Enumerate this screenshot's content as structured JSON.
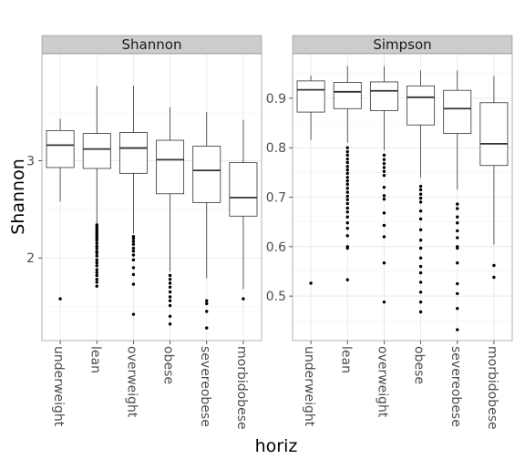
{
  "chart_data": {
    "type": "boxplot",
    "xlabel": "horiz",
    "ylabel": "Shannon",
    "categories": [
      "underweight",
      "lean",
      "overweight",
      "obese",
      "severeobese",
      "morbidobese"
    ],
    "facet_scales": "free_y",
    "grid": true,
    "colors": {
      "panel_background": "#ffffff",
      "panel_border": "#7f7f7f",
      "grid_major": "#e6e6e6",
      "grid_minor": "#f2f2f2",
      "strip_background": "#cccccc",
      "box_line": "#333333",
      "outlier": "#000000"
    },
    "panels": [
      {
        "strip": "Shannon",
        "ylim": [
          1.15,
          4.1
        ],
        "yticks": [
          2,
          3
        ],
        "ytick_labels": [
          "2",
          "3"
        ],
        "boxes": [
          {
            "category": "underweight",
            "min": 2.58,
            "q1": 2.93,
            "median": 3.16,
            "q3": 3.31,
            "max": 3.43,
            "outliers": [
              1.58
            ]
          },
          {
            "category": "lean",
            "min": 2.25,
            "q1": 2.92,
            "median": 3.12,
            "q3": 3.28,
            "max": 3.77,
            "outliers": [
              2.34,
              2.32,
              2.3,
              2.28,
              2.26,
              2.24,
              2.22,
              2.2,
              2.18,
              2.15,
              2.12,
              2.1,
              2.07,
              2.05,
              2.02,
              1.98,
              1.95,
              1.92,
              1.88,
              1.85,
              1.82,
              1.78,
              1.75,
              1.71
            ]
          },
          {
            "category": "overweight",
            "min": 2.25,
            "q1": 2.87,
            "median": 3.13,
            "q3": 3.29,
            "max": 3.77,
            "outliers": [
              2.22,
              2.2,
              2.17,
              2.14,
              2.1,
              2.07,
              2.03,
              1.98,
              1.9,
              1.83,
              1.73,
              1.42
            ]
          },
          {
            "category": "obese",
            "min": 1.86,
            "q1": 2.66,
            "median": 3.01,
            "q3": 3.21,
            "max": 3.55,
            "outliers": [
              1.82,
              1.78,
              1.74,
              1.7,
              1.65,
              1.6,
              1.56,
              1.51,
              1.4,
              1.32
            ]
          },
          {
            "category": "severeobese",
            "min": 1.79,
            "q1": 2.57,
            "median": 2.9,
            "q3": 3.15,
            "max": 3.5,
            "outliers": [
              1.56,
              1.53,
              1.45,
              1.28
            ]
          },
          {
            "category": "morbidobese",
            "min": 1.68,
            "q1": 2.43,
            "median": 2.62,
            "q3": 2.98,
            "max": 3.42,
            "outliers": [
              1.58
            ]
          }
        ]
      },
      {
        "strip": "Simpson",
        "ylim": [
          0.41,
          0.99
        ],
        "yticks": [
          0.5,
          0.6,
          0.7,
          0.8,
          0.9
        ],
        "ytick_labels": [
          "0.5",
          "0.6",
          "0.7",
          "0.8",
          "0.9"
        ],
        "boxes": [
          {
            "category": "underweight",
            "min": 0.815,
            "q1": 0.872,
            "median": 0.917,
            "q3": 0.935,
            "max": 0.946,
            "outliers": [
              0.526
            ]
          },
          {
            "category": "lean",
            "min": 0.81,
            "q1": 0.879,
            "median": 0.913,
            "q3": 0.932,
            "max": 0.965,
            "outliers": [
              0.8,
              0.792,
              0.785,
              0.777,
              0.77,
              0.762,
              0.755,
              0.748,
              0.74,
              0.733,
              0.726,
              0.718,
              0.71,
              0.702,
              0.695,
              0.687,
              0.678,
              0.67,
              0.66,
              0.648,
              0.637,
              0.622,
              0.6,
              0.597,
              0.533
            ]
          },
          {
            "category": "overweight",
            "min": 0.795,
            "q1": 0.875,
            "median": 0.915,
            "q3": 0.933,
            "max": 0.965,
            "outliers": [
              0.785,
              0.776,
              0.768,
              0.76,
              0.752,
              0.744,
              0.72,
              0.703,
              0.696,
              0.668,
              0.643,
              0.62,
              0.567,
              0.488
            ]
          },
          {
            "category": "obese",
            "min": 0.74,
            "q1": 0.846,
            "median": 0.902,
            "q3": 0.925,
            "max": 0.956,
            "outliers": [
              0.722,
              0.715,
              0.706,
              0.698,
              0.69,
              0.672,
              0.656,
              0.634,
              0.613,
              0.597,
              0.577,
              0.56,
              0.547,
              0.528,
              0.508,
              0.488,
              0.468
            ]
          },
          {
            "category": "severeobese",
            "min": 0.715,
            "q1": 0.829,
            "median": 0.879,
            "q3": 0.916,
            "max": 0.956,
            "outliers": [
              0.686,
              0.677,
              0.66,
              0.648,
              0.632,
              0.618,
              0.6,
              0.597,
              0.567,
              0.525,
              0.505,
              0.475,
              0.432
            ]
          },
          {
            "category": "morbidobese",
            "min": 0.604,
            "q1": 0.764,
            "median": 0.808,
            "q3": 0.891,
            "max": 0.945,
            "outliers": [
              0.562,
              0.538
            ]
          }
        ]
      }
    ]
  }
}
